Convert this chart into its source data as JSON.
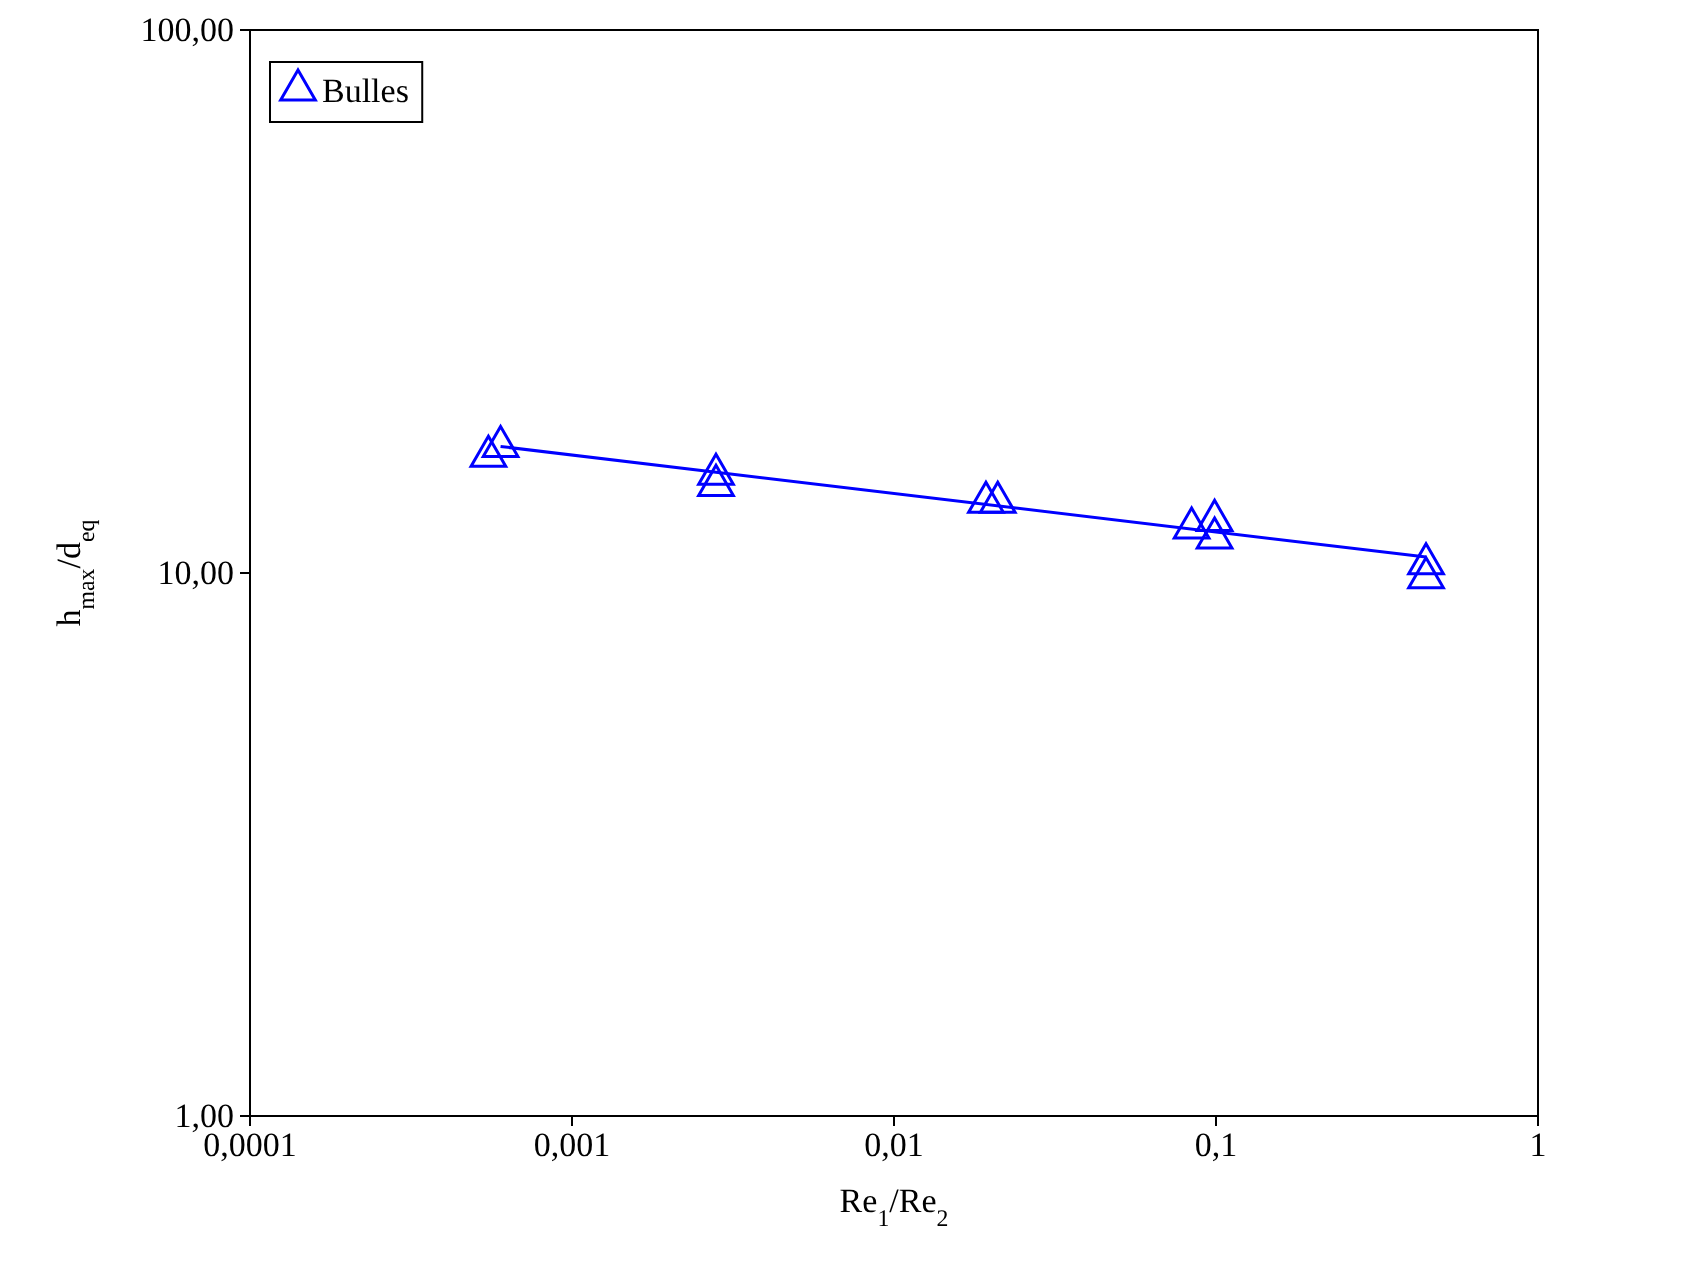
{
  "chart_data": {
    "type": "scatter",
    "xlabel": "Re$_{1}$/Re$_{2}$",
    "ylabel": "h$_{max}$/d$_{eq}$",
    "log": "xy",
    "grid": false,
    "legend": "top left",
    "marker": "triangle",
    "xlim": [
      0.0001,
      1
    ],
    "ylim": [
      1,
      100
    ],
    "xticks": [
      {
        "value": 0.0001,
        "label": "0,0001"
      },
      {
        "value": 0.001,
        "label": "0,001"
      },
      {
        "value": 0.01,
        "label": "0,01"
      },
      {
        "value": 0.1,
        "label": "0,1"
      },
      {
        "value": 1,
        "label": "1"
      }
    ],
    "yticks": [
      {
        "value": 1,
        "label": "1,00"
      },
      {
        "value": 10,
        "label": "10,00"
      },
      {
        "value": 100,
        "label": "100,00"
      }
    ],
    "series": [
      {
        "name": "Bulles",
        "color": "#0000ff",
        "x": [
          0.00055,
          0.0006,
          0.0028,
          0.0028,
          0.0193,
          0.021,
          0.084,
          0.099,
          0.099,
          0.449,
          0.449
        ],
        "values": [
          16.4,
          17.1,
          15.2,
          14.5,
          13.5,
          13.5,
          12.1,
          12.5,
          11.6,
          10.4,
          9.8
        ]
      },
      {
        "type": "line",
        "color": "#0000ff",
        "marker": "none",
        "line_style": "solid",
        "x": [
          0.0006,
          0.449
        ],
        "values": [
          17.1,
          10.7
        ]
      }
    ]
  }
}
